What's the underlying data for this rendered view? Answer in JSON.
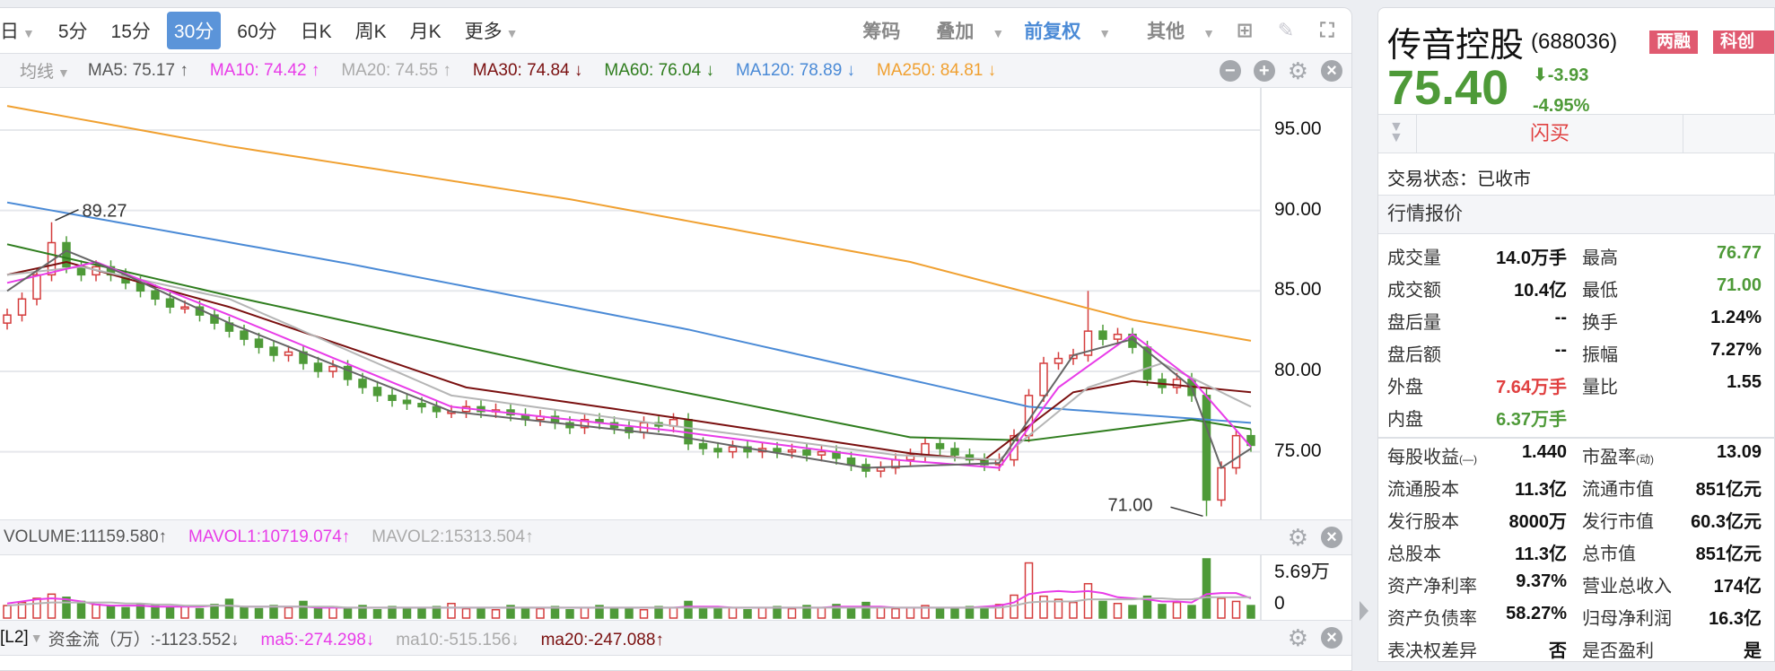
{
  "toolbar": {
    "periods": [
      "日",
      "5分",
      "15分",
      "30分",
      "60分",
      "日K",
      "周K",
      "月K",
      "更多"
    ],
    "active": "30分",
    "right": {
      "chips": "筹码",
      "overlay": "叠加",
      "adjust": "前复权",
      "other": "其他"
    }
  },
  "ma_row": {
    "label": "均线",
    "items": [
      {
        "text": "MA5: 75.17 ↑",
        "color": "#555555"
      },
      {
        "text": "MA10: 74.42 ↑",
        "color": "#e83ce8"
      },
      {
        "text": "MA20: 74.55 ↑",
        "color": "#aaaaaa"
      },
      {
        "text": "MA30: 74.84 ↓",
        "color": "#7a1010"
      },
      {
        "text": "MA60: 76.04 ↓",
        "color": "#2f7d1e"
      },
      {
        "text": "MA120: 78.89 ↓",
        "color": "#4a8ad6"
      },
      {
        "text": "MA250: 84.81 ↓",
        "color": "#f0a030"
      }
    ]
  },
  "price_axis": [
    "95.00",
    "90.00",
    "85.00",
    "80.00",
    "75.00"
  ],
  "annotations": {
    "high": "89.27",
    "low": "71.00"
  },
  "chart_data": {
    "type": "candlestick",
    "ylim": [
      70.4,
      97.6
    ],
    "y_ticks": [
      95,
      90,
      85,
      80,
      75
    ],
    "closes": [
      83.5,
      84.5,
      86,
      88,
      86.5,
      86,
      86.5,
      86,
      85.5,
      85,
      84.5,
      84,
      84,
      83.5,
      83,
      82.5,
      82,
      81.5,
      81,
      81.2,
      80.5,
      80,
      80.3,
      79.5,
      79,
      78.5,
      78.2,
      78,
      77.8,
      77.5,
      77.5,
      77.8,
      77.5,
      77.6,
      77.3,
      77,
      77.2,
      76.8,
      76.5,
      77,
      76.8,
      76.5,
      76.2,
      76.8,
      76.6,
      77,
      75.5,
      75.2,
      75,
      75.3,
      75,
      75.2,
      75,
      75.1,
      74.8,
      75,
      74.6,
      74.2,
      73.8,
      74,
      74.5,
      74.8,
      75.5,
      75.2,
      74.8,
      74.5,
      74.2,
      74.5,
      76,
      78.5,
      80.5,
      80.8,
      81,
      82.5,
      82,
      82.3,
      81.5,
      79.5,
      79,
      79.5,
      78.5,
      72,
      74,
      76,
      75.4
    ],
    "high_idx": 3,
    "high": 89.27,
    "low_idx": 81,
    "low": 71.0,
    "spike_idx": 73,
    "spike_high": 85,
    "ma": {
      "MA250": {
        "color": "#f0a030",
        "pts": [
          [
            0,
            96.5
          ],
          [
            15,
            94
          ],
          [
            38,
            90.7
          ],
          [
            61,
            86.8
          ],
          [
            76,
            83.2
          ],
          [
            84,
            81.9
          ]
        ]
      },
      "MA120": {
        "color": "#4a8ad6",
        "pts": [
          [
            0,
            90.5
          ],
          [
            23,
            86.7
          ],
          [
            46,
            82.6
          ],
          [
            69,
            77.8
          ],
          [
            84,
            76.8
          ]
        ]
      },
      "MA60": {
        "color": "#2f7d1e",
        "pts": [
          [
            0,
            87.9
          ],
          [
            15,
            84.7
          ],
          [
            38,
            80.1
          ],
          [
            61,
            75.9
          ],
          [
            69,
            75.7
          ],
          [
            80,
            77
          ],
          [
            84,
            76.4
          ]
        ]
      },
      "MA30": {
        "color": "#7a1010",
        "pts": [
          [
            0,
            86
          ],
          [
            4,
            86.8
          ],
          [
            15,
            84
          ],
          [
            31,
            79
          ],
          [
            46,
            77
          ],
          [
            61,
            74.9
          ],
          [
            66,
            74.5
          ],
          [
            72,
            78.7
          ],
          [
            76,
            79.4
          ],
          [
            84,
            78.7
          ]
        ]
      },
      "MA20": {
        "color": "#b5b5b5",
        "pts": [
          [
            0,
            86
          ],
          [
            5,
            86.5
          ],
          [
            15,
            84.5
          ],
          [
            30,
            78.5
          ],
          [
            45,
            76.6
          ],
          [
            60,
            74.8
          ],
          [
            67,
            74.5
          ],
          [
            73,
            79
          ],
          [
            78,
            80.5
          ],
          [
            84,
            77.8
          ]
        ]
      },
      "MA10": {
        "color": "#e83ce8",
        "pts": [
          [
            0,
            85.5
          ],
          [
            6,
            86.8
          ],
          [
            15,
            83.5
          ],
          [
            30,
            77.8
          ],
          [
            45,
            76.3
          ],
          [
            60,
            74.5
          ],
          [
            67,
            74
          ],
          [
            71,
            79
          ],
          [
            76,
            82.3
          ],
          [
            80,
            79.5
          ],
          [
            84,
            75.3
          ]
        ]
      },
      "MA5": {
        "color": "#666666",
        "pts": [
          [
            0,
            85
          ],
          [
            4,
            87.5
          ],
          [
            8,
            86
          ],
          [
            15,
            83
          ],
          [
            30,
            77.5
          ],
          [
            45,
            76
          ],
          [
            58,
            74
          ],
          [
            67,
            74.3
          ],
          [
            72,
            81
          ],
          [
            76,
            82
          ],
          [
            80,
            79
          ],
          [
            82,
            74
          ],
          [
            84,
            75.2
          ]
        ]
      }
    },
    "volume": {
      "max_label": "5.69万",
      "zero_label": "0",
      "max": 5.69,
      "values": [
        1.2,
        1.5,
        1.9,
        2.3,
        2.0,
        1.6,
        1.3,
        1.1,
        1.0,
        1.4,
        1.2,
        1.0,
        1.1,
        0.9,
        1.3,
        1.8,
        1.0,
        0.9,
        1.2,
        1.0,
        1.6,
        0.9,
        1.1,
        1.0,
        1.2,
        0.8,
        1.1,
        0.9,
        1.0,
        1.1,
        1.4,
        0.9,
        1.0,
        0.8,
        1.2,
        1.0,
        0.9,
        1.1,
        0.8,
        1.0,
        1.2,
        0.9,
        1.0,
        0.8,
        1.1,
        1.0,
        1.6,
        1.1,
        0.9,
        1.0,
        0.8,
        1.0,
        1.1,
        0.9,
        1.2,
        1.0,
        1.3,
        1.0,
        1.5,
        1.1,
        0.9,
        1.0,
        1.2,
        1.0,
        0.9,
        1.1,
        1.0,
        1.3,
        2.2,
        5.3,
        2.1,
        1.8,
        1.5,
        3.3,
        1.6,
        1.4,
        1.2,
        2.1,
        1.3,
        1.5,
        1.2,
        5.69,
        1.9,
        1.6,
        1.2
      ],
      "mavol1": [
        1.4,
        1.6,
        1.8,
        1.9,
        1.8,
        1.6,
        1.3,
        1.2,
        1.2,
        1.2,
        1.1,
        1.1,
        1.1,
        1.1,
        1.2,
        1.2,
        1.1,
        1.1,
        1.1,
        1.1,
        1.1,
        1.0,
        1.0,
        1.0,
        1.0,
        1.0,
        1.0,
        1.0,
        1.0,
        1.0,
        1.0,
        1.0,
        1.0,
        1.0,
        1.0,
        1.0,
        1.0,
        1.0,
        1.0,
        1.0,
        1.0,
        1.0,
        1.0,
        1.0,
        1.0,
        1.0,
        1.1,
        1.1,
        1.1,
        1.0,
        1.0,
        1.0,
        1.0,
        1.0,
        1.0,
        1.0,
        1.1,
        1.1,
        1.1,
        1.1,
        1.0,
        1.0,
        1.0,
        1.0,
        1.0,
        1.0,
        1.1,
        1.2,
        1.5,
        2.3,
        2.5,
        2.6,
        2.5,
        2.6,
        2.4,
        2.0,
        1.9,
        1.8,
        1.6,
        1.6,
        1.5,
        2.3,
        2.4,
        2.4,
        1.9
      ],
      "mavol2": [
        1.2,
        1.3,
        1.4,
        1.5,
        1.5,
        1.5,
        1.5,
        1.5,
        1.4,
        1.4,
        1.3,
        1.3,
        1.2,
        1.2,
        1.2,
        1.2,
        1.1,
        1.1,
        1.1,
        1.1,
        1.1,
        1.1,
        1.1,
        1.0,
        1.0,
        1.0,
        1.0,
        1.0,
        1.0,
        1.0,
        1.0,
        1.0,
        1.0,
        1.0,
        1.0,
        1.0,
        1.0,
        1.0,
        1.0,
        1.0,
        1.0,
        1.0,
        1.0,
        1.0,
        1.0,
        1.0,
        1.0,
        1.0,
        1.0,
        1.0,
        1.0,
        1.0,
        1.0,
        1.0,
        1.0,
        1.0,
        1.0,
        1.0,
        1.0,
        1.0,
        1.0,
        1.0,
        1.0,
        1.0,
        1.0,
        1.0,
        1.0,
        1.0,
        1.2,
        1.5,
        1.6,
        1.6,
        1.6,
        1.8,
        1.8,
        1.8,
        1.8,
        1.9,
        1.9,
        1.8,
        1.8,
        2.0,
        2.0,
        2.0,
        2.0
      ]
    }
  },
  "volume_hdr": {
    "items": [
      {
        "text": "VOLUME:11159.580↑",
        "color": "#555555"
      },
      {
        "text": "MAVOL1:10719.074↑",
        "color": "#e83ce8"
      },
      {
        "text": "MAVOL2:15313.504↑",
        "color": "#aaaaaa"
      }
    ]
  },
  "l2_hdr": {
    "tag": "[L2]",
    "items": [
      {
        "text": "资金流（万）:-1123.552↓",
        "color": "#555555"
      },
      {
        "text": "ma5:-274.298↓",
        "color": "#e83ce8"
      },
      {
        "text": "ma10:-515.156↓",
        "color": "#aaaaaa"
      },
      {
        "text": "ma20:-247.088↑",
        "color": "#7a1010"
      }
    ]
  },
  "stock": {
    "name": "传音控股",
    "code": "(688036)",
    "tags": [
      "两融",
      "科创板"
    ],
    "price": "75.40",
    "change": "-3.93",
    "change_pct": "-4.95%",
    "flash_buy": "闪买",
    "status": "交易状态：已收市",
    "quote_header": "行情报价",
    "rows": [
      {
        "l1": "成交量",
        "v1": "14.0万手",
        "l2": "最高",
        "v2": "76.77",
        "c2": "#4e9a38"
      },
      {
        "l1": "成交额",
        "v1": "10.4亿",
        "l2": "最低",
        "v2": "71.00",
        "c2": "#4e9a38"
      },
      {
        "l1": "盘后量",
        "v1": "--",
        "l2": "换手",
        "v2": "1.24%"
      },
      {
        "l1": "盘后额",
        "v1": "--",
        "l2": "振幅",
        "v2": "7.27%"
      },
      {
        "l1": "外盘",
        "v1": "7.64万手",
        "c1": "#e04040",
        "l2": "量比",
        "v2": "1.55"
      },
      {
        "l1": "内盘",
        "v1": "6.37万手",
        "c1": "#4e9a38",
        "l2": "",
        "v2": ""
      }
    ],
    "fund_rows": [
      {
        "l1": "每股收益",
        "s1": "(—)",
        "v1": "1.440",
        "l2": "市盈率",
        "s2": "(动)",
        "v2": "13.09"
      },
      {
        "l1": "流通股本",
        "v1": "11.3亿",
        "l2": "流通市值",
        "v2": "851亿元"
      },
      {
        "l1": "发行股本",
        "v1": "8000万",
        "l2": "发行市值",
        "v2": "60.3亿元"
      },
      {
        "l1": "总股本",
        "v1": "11.3亿",
        "l2": "总市值",
        "v2": "851亿元"
      },
      {
        "l1": "资产净利率",
        "v1": "9.37%",
        "l2": "营业总收入",
        "v2": "174亿"
      },
      {
        "l1": "资产负债率",
        "v1": "58.27%",
        "l2": "归母净利润",
        "v2": "16.3亿"
      },
      {
        "l1": "表决权差异",
        "v1": "否",
        "l2": "是否盈利",
        "v2": "是"
      }
    ]
  }
}
